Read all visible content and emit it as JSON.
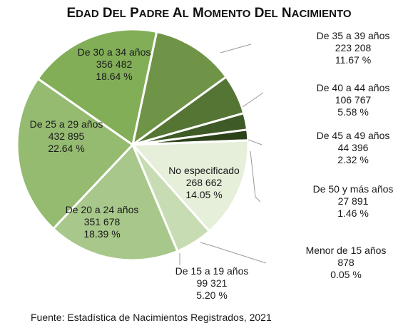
{
  "chart_data": {
    "type": "pie",
    "title": "Edad del padre al momento del nacimiento",
    "source": "Fuente: Estadística de Nacimientos Registrados, 2021",
    "slices": [
      {
        "label": "De 35 a 39 años",
        "value_text": "223 208",
        "percent_text": "11.67 %",
        "value": 223208,
        "percent": 11.67,
        "color": "#6f9447"
      },
      {
        "label": "De 40 a 44 años",
        "value_text": "106 767",
        "percent_text": "5.58 %",
        "value": 106767,
        "percent": 5.58,
        "color": "#557534"
      },
      {
        "label": "De 45 a 49 años",
        "value_text": "44 396",
        "percent_text": "2.32 %",
        "value": 44396,
        "percent": 2.32,
        "color": "#3e5a26"
      },
      {
        "label": "De 50 y más años",
        "value_text": "27 891",
        "percent_text": "1.46 %",
        "value": 27891,
        "percent": 1.46,
        "color": "#2c4219"
      },
      {
        "label": "Menor de 15 años",
        "value_text": "878",
        "percent_text": "0.05 %",
        "value": 878,
        "percent": 0.05,
        "color": "#1f3011"
      },
      {
        "label": "No especificado",
        "value_text": "268 662",
        "percent_text": "14.05 %",
        "value": 268662,
        "percent": 14.05,
        "color": "#e6efd9"
      },
      {
        "label": "De 15 a 19 años",
        "value_text": "99 321",
        "percent_text": "5.20 %",
        "value": 99321,
        "percent": 5.2,
        "color": "#c8dcb3"
      },
      {
        "label": "De 20 a 24 años",
        "value_text": "351 678",
        "percent_text": "18.39 %",
        "value": 351678,
        "percent": 18.39,
        "color": "#a8c78b"
      },
      {
        "label": "De 25 a 29 años",
        "value_text": "432 895",
        "percent_text": "22.64 %",
        "value": 432895,
        "percent": 22.64,
        "color": "#95bb71"
      },
      {
        "label": "De 30 a 34 años",
        "value_text": "356 482",
        "percent_text": "18.64 %",
        "value": 356482,
        "percent": 18.64,
        "color": "#82ae58"
      }
    ]
  }
}
